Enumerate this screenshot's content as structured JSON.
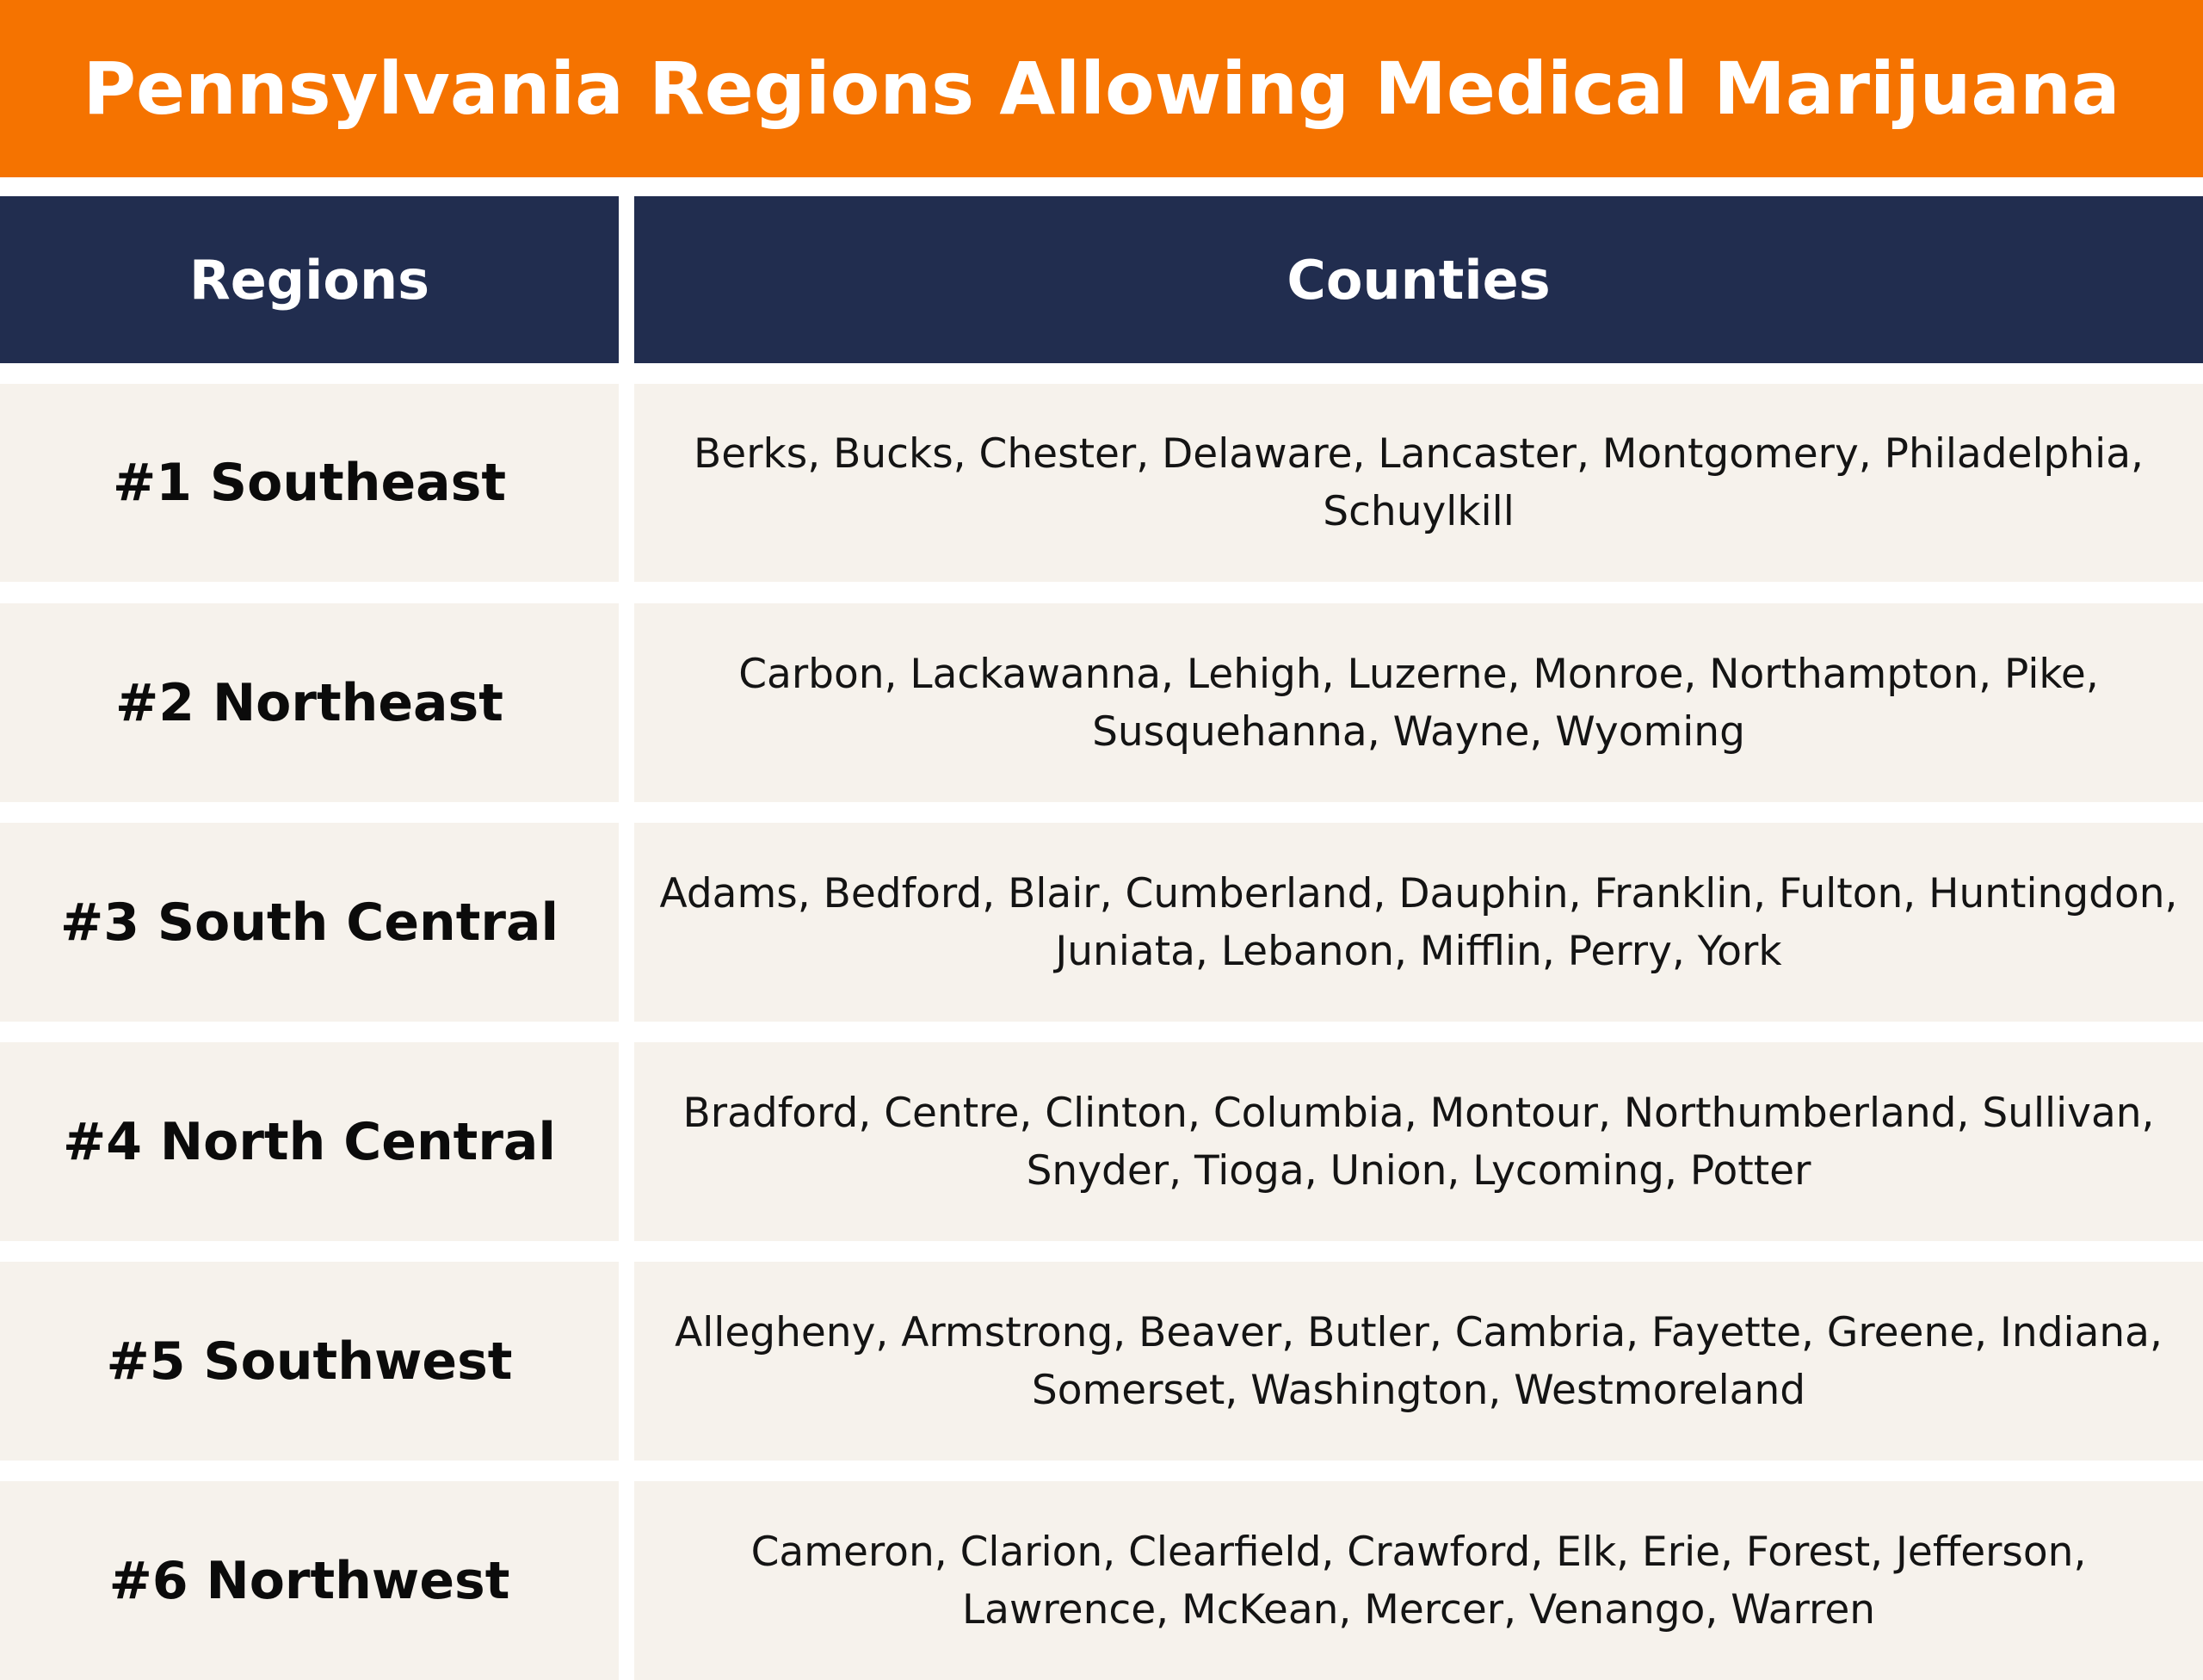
{
  "title": "Pennsylvania Regions Allowing Medical Marijuana",
  "table": {
    "headers": [
      "Regions",
      "Counties"
    ],
    "rows": [
      {
        "region": "#1 Southeast",
        "counties": "Berks, Bucks, Chester, Delaware, Lancaster, Montgomery, Philadelphia, Schuylkill"
      },
      {
        "region": "#2 Northeast",
        "counties": "Carbon, Lackawanna, Lehigh, Luzerne, Monroe, Northampton, Pike, Susquehanna, Wayne, Wyoming"
      },
      {
        "region": "#3 South Central",
        "counties": "Adams, Bedford, Blair, Cumberland, Dauphin, Franklin, Fulton, Huntingdon, Juniata, Lebanon, Mifflin, Perry, York"
      },
      {
        "region": "#4 North Central",
        "counties": "Bradford, Centre, Clinton, Columbia, Montour, Northumberland, Sullivan, Snyder, Tioga, Union, Lycoming, Potter"
      },
      {
        "region": "#5 Southwest",
        "counties": "Allegheny, Armstrong, Beaver, Butler, Cambria, Fayette, Greene, Indiana, Somerset, Washington, Westmoreland"
      },
      {
        "region": "#6 Northwest",
        "counties": "Cameron, Clarion, Clearfield, Crawford, Elk, Erie, Forest, Jefferson, Lawrence, McKean, Mercer, Venango, Warren"
      }
    ]
  },
  "colors": {
    "banner": "#f57300",
    "header": "#212d4f",
    "cell": "#f6f2ec"
  }
}
